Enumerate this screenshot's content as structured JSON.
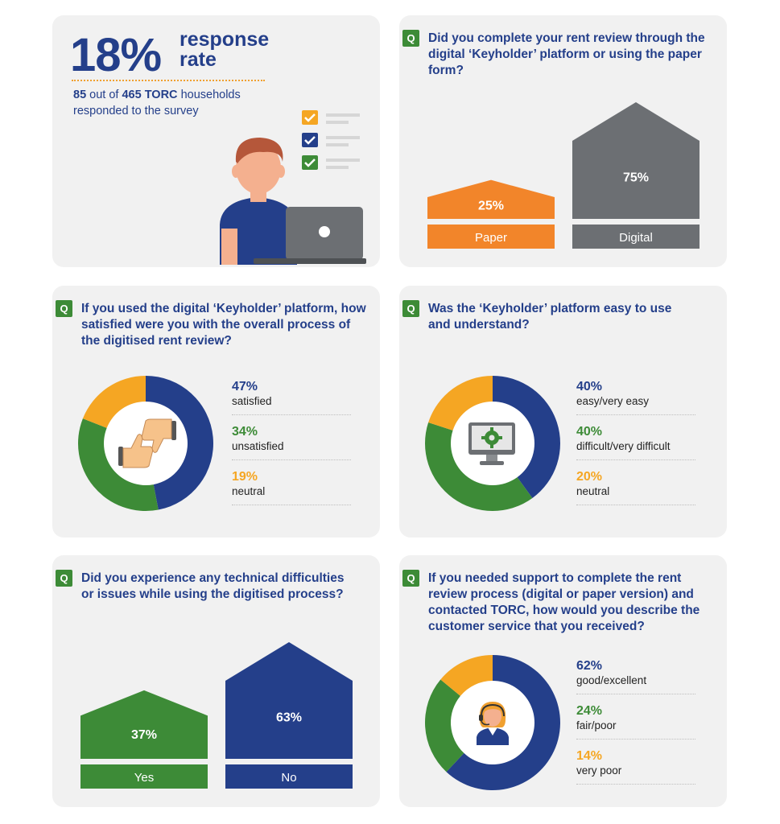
{
  "colors": {
    "navy": "#243f8a",
    "green": "#3d8b37",
    "orange": "#f2852a",
    "yellow": "#f5a623",
    "gray": "#6c6f73",
    "card": "#f1f1f1"
  },
  "response": {
    "percent": "18%",
    "word": "response rate",
    "count": "85",
    "count_text": "out of",
    "total": "465 TORC",
    "total_text": "households responded to the survey"
  },
  "q_badge": "Q",
  "q1": {
    "question": "Did you complete your rent review through the digital ‘Keyholder’ platform or using the paper form?",
    "chart_data": {
      "type": "bar",
      "categories": [
        "Paper",
        "Digital"
      ],
      "values": [
        25,
        75
      ],
      "labels": [
        "25%",
        "75%"
      ]
    }
  },
  "q2": {
    "question": "If you used the digital ‘Keyholder’ platform, how satisfied were you with the overall process of the digitised rent review?",
    "chart_data": {
      "type": "pie",
      "categories": [
        "satisfied",
        "unsatisfied",
        "neutral"
      ],
      "values": [
        47,
        34,
        19
      ],
      "labels": [
        "47%",
        "34%",
        "19%"
      ]
    }
  },
  "q3": {
    "question": "Was the ‘Keyholder’ platform easy to use and understand?",
    "chart_data": {
      "type": "pie",
      "categories": [
        "easy/very easy",
        "difficult/very difficult",
        "neutral"
      ],
      "values": [
        40,
        40,
        20
      ],
      "labels": [
        "40%",
        "40%",
        "20%"
      ]
    }
  },
  "q4": {
    "question": "Did you experience any technical difficulties or issues while using the digitised process?",
    "chart_data": {
      "type": "bar",
      "categories": [
        "Yes",
        "No"
      ],
      "values": [
        37,
        63
      ],
      "labels": [
        "37%",
        "63%"
      ]
    }
  },
  "q5": {
    "question": "If you needed support to complete the rent review process (digital or paper version) and contacted TORC, how would you describe the customer service that you received?",
    "chart_data": {
      "type": "pie",
      "categories": [
        "good/excellent",
        "fair/poor",
        "very poor"
      ],
      "values": [
        62,
        24,
        14
      ],
      "labels": [
        "62%",
        "24%",
        "14%"
      ]
    }
  }
}
